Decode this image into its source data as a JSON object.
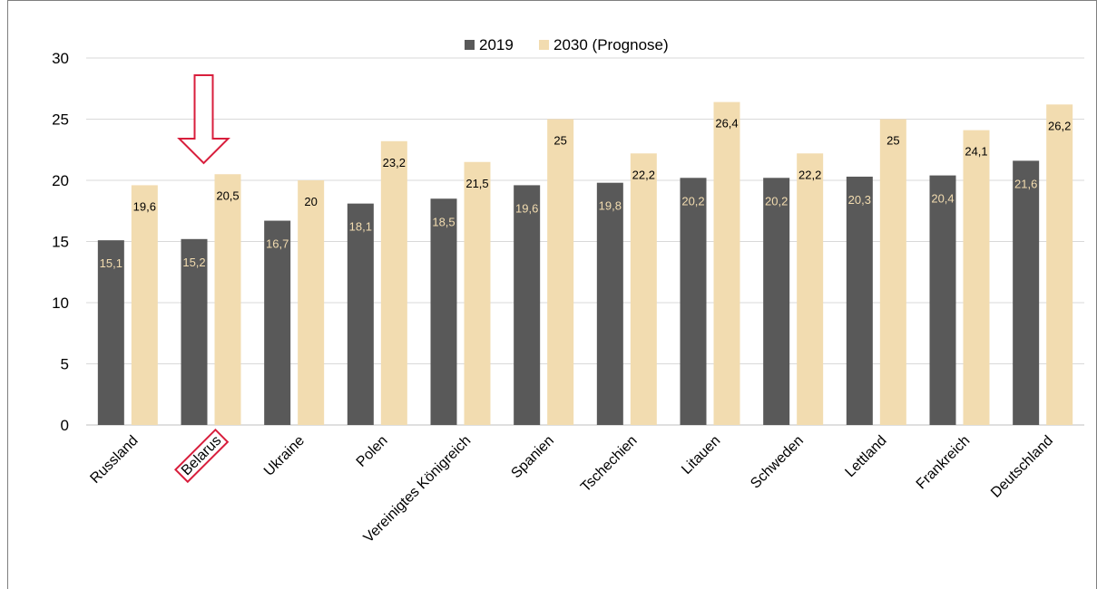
{
  "chart_data": {
    "type": "bar",
    "title": "",
    "categories": [
      "Russland",
      "Belarus",
      "Ukraine",
      "Polen",
      "Vereinigtes Königreich",
      "Spanien",
      "Tschechien",
      "Litauen",
      "Schweden",
      "Lettland",
      "Frankreich",
      "Deutschland"
    ],
    "series": [
      {
        "name": "2019",
        "values": [
          15.1,
          15.2,
          16.7,
          18.1,
          18.5,
          19.6,
          19.8,
          20.2,
          20.2,
          20.3,
          20.4,
          21.6
        ],
        "labels": [
          "15,1",
          "15,2",
          "16,7",
          "18,1",
          "18,5",
          "19,6",
          "19,8",
          "20,2",
          "20,2",
          "20,3",
          "20,4",
          "21,6"
        ]
      },
      {
        "name": "2030 (Prognose)",
        "values": [
          19.6,
          20.5,
          20,
          23.2,
          21.5,
          25,
          22.2,
          26.4,
          22.2,
          25,
          24.1,
          26.2
        ],
        "labels": [
          "19,6",
          "20,5",
          "20",
          "23,2",
          "21,5",
          "25",
          "22,2",
          "26,4",
          "22,2",
          "25",
          "24,1",
          "26,2"
        ]
      }
    ],
    "ylim": [
      0,
      30
    ],
    "yticks": [
      0,
      5,
      10,
      15,
      20,
      25,
      30
    ],
    "grid": true,
    "legend_position": "top",
    "highlight": {
      "category": "Belarus",
      "marker": "down-arrow"
    },
    "colors": {
      "series_2019": "#595959",
      "series_2030": "#f2dcb0",
      "highlight": "#d81e3c",
      "grid": "#d9d9d9"
    }
  }
}
